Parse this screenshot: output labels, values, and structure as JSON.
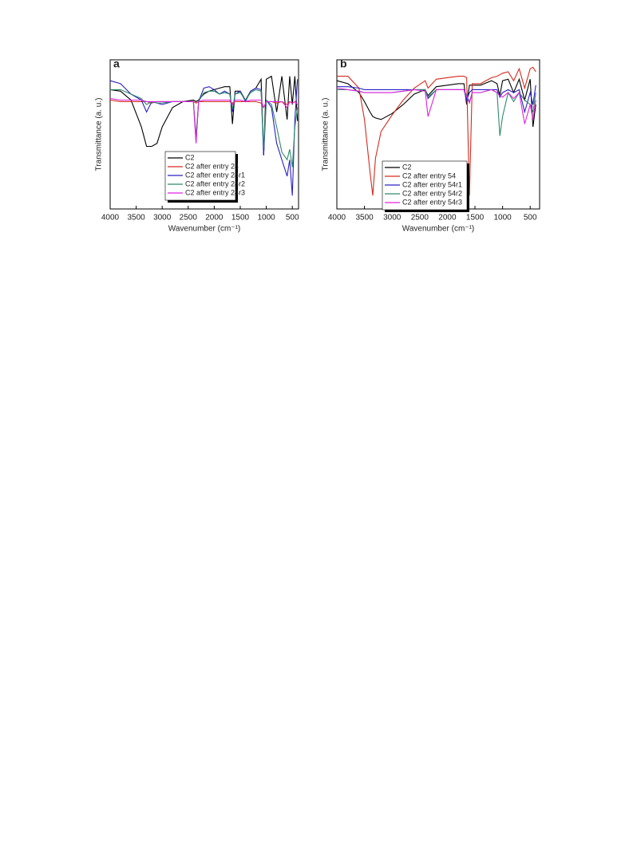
{
  "chart_data": [
    {
      "type": "line",
      "label": "a",
      "xlabel": "Wavenumber (cm⁻¹)",
      "ylabel": "Transmittance (a. u.)",
      "x": [
        4000,
        3800,
        3600,
        3400,
        3300,
        3200,
        3100,
        3000,
        2800,
        2600,
        2400,
        2350,
        2300,
        2200,
        2100,
        2000,
        1900,
        1800,
        1700,
        1650,
        1600,
        1500,
        1400,
        1300,
        1200,
        1100,
        1050,
        1000,
        900,
        800,
        700,
        600,
        550,
        500,
        450,
        400
      ],
      "xlim": [
        4000,
        380
      ],
      "ylim": [
        0,
        100
      ],
      "xticks": [
        4000,
        3500,
        3000,
        2500,
        2000,
        1500,
        1000,
        500
      ],
      "legend": "lower center",
      "series": [
        {
          "name": "C2",
          "color": "#000000",
          "values": [
            80,
            79,
            73,
            55,
            42,
            42,
            44,
            55,
            68,
            72,
            73,
            72,
            73,
            77,
            79,
            80,
            81,
            82,
            82,
            57,
            79,
            79,
            73,
            79,
            81,
            87,
            36,
            87,
            89,
            65,
            89,
            60,
            89,
            70,
            89,
            59
          ]
        },
        {
          "name": "C2 after entry 24",
          "color": "#d42a1e",
          "values": [
            73,
            72,
            72,
            72,
            72,
            71,
            72,
            72,
            72,
            72,
            72,
            71,
            72,
            72,
            72,
            72,
            72,
            72,
            72,
            71,
            72,
            72,
            72,
            72,
            72,
            71,
            68,
            72,
            72,
            71,
            72,
            70,
            72,
            71,
            72,
            70
          ]
        },
        {
          "name": "C2 after entry 24r1",
          "color": "#2b22c4",
          "values": [
            86,
            84,
            77,
            73,
            65,
            72,
            71,
            70,
            72,
            72,
            72,
            45,
            72,
            81,
            82,
            80,
            77,
            79,
            77,
            65,
            77,
            79,
            72,
            79,
            81,
            80,
            36,
            73,
            68,
            44,
            33,
            22,
            33,
            9,
            60,
            87
          ]
        },
        {
          "name": "C2 after entry 24r2",
          "color": "#2f8a6c",
          "values": [
            80,
            80,
            77,
            74,
            70,
            72,
            71,
            71,
            72,
            72,
            72,
            49,
            72,
            78,
            79,
            79,
            77,
            78,
            77,
            67,
            77,
            78,
            73,
            78,
            80,
            79,
            41,
            73,
            70,
            55,
            38,
            33,
            40,
            28,
            55,
            68
          ]
        },
        {
          "name": "C2 after entry 24r3",
          "color": "#e022e0",
          "values": [
            74,
            73,
            73,
            73,
            72,
            72,
            72,
            72,
            72,
            72,
            72,
            44,
            72,
            73,
            73,
            73,
            73,
            73,
            73,
            70,
            73,
            73,
            72,
            73,
            73,
            73,
            68,
            72,
            72,
            72,
            72,
            68,
            72,
            71,
            72,
            70
          ]
        }
      ]
    },
    {
      "type": "line",
      "label": "b",
      "xlabel": "Wavenumber (cm⁻¹)",
      "ylabel": "Transmittance (a. u.)",
      "x": [
        4000,
        3800,
        3600,
        3500,
        3400,
        3350,
        3300,
        3200,
        3000,
        2800,
        2600,
        2400,
        2350,
        2200,
        2000,
        1800,
        1700,
        1650,
        1600,
        1550,
        1400,
        1200,
        1100,
        1050,
        1000,
        900,
        800,
        700,
        600,
        500,
        450,
        400
      ],
      "xlim": [
        4000,
        330
      ],
      "ylim": [
        0,
        100
      ],
      "xticks": [
        4000,
        3500,
        3000,
        2500,
        2000,
        1500,
        1000,
        500
      ],
      "legend": "lower center",
      "series": [
        {
          "name": "C2",
          "color": "#000000",
          "values": [
            86,
            84,
            78,
            72,
            65,
            62,
            61,
            60,
            64,
            70,
            77,
            80,
            76,
            82,
            83,
            84,
            84,
            70,
            83,
            83,
            83,
            86,
            84,
            76,
            86,
            87,
            78,
            87,
            73,
            87,
            55,
            70
          ]
        },
        {
          "name": "C2 after entry 54",
          "color": "#d42a1e",
          "values": [
            89,
            89,
            81,
            60,
            25,
            9,
            34,
            52,
            63,
            73,
            81,
            86,
            81,
            87,
            88,
            89,
            89,
            88,
            9,
            84,
            84,
            88,
            89,
            90,
            91,
            92,
            86,
            94,
            81,
            94,
            95,
            92
          ]
        },
        {
          "name": "C2 after entry 54r1",
          "color": "#2b22c4",
          "values": [
            82,
            82,
            81,
            80,
            80,
            80,
            80,
            80,
            80,
            80,
            80,
            80,
            74,
            80,
            80,
            80,
            80,
            73,
            78,
            80,
            80,
            80,
            80,
            75,
            78,
            80,
            78,
            80,
            65,
            78,
            70,
            83
          ]
        },
        {
          "name": "C2 after entry 54r2",
          "color": "#2f8a6c",
          "values": [
            80,
            80,
            79,
            78,
            78,
            78,
            78,
            78,
            78,
            79,
            80,
            80,
            75,
            80,
            80,
            80,
            80,
            76,
            72,
            78,
            78,
            80,
            78,
            49,
            62,
            78,
            72,
            78,
            73,
            70,
            65,
            78
          ]
        },
        {
          "name": "C2 after entry 54r3",
          "color": "#e022e0",
          "values": [
            81,
            80,
            79,
            78,
            78,
            78,
            78,
            78,
            78,
            79,
            80,
            79,
            62,
            80,
            80,
            80,
            80,
            75,
            71,
            78,
            78,
            80,
            78,
            76,
            75,
            78,
            74,
            78,
            57,
            70,
            60,
            73
          ]
        }
      ]
    }
  ]
}
